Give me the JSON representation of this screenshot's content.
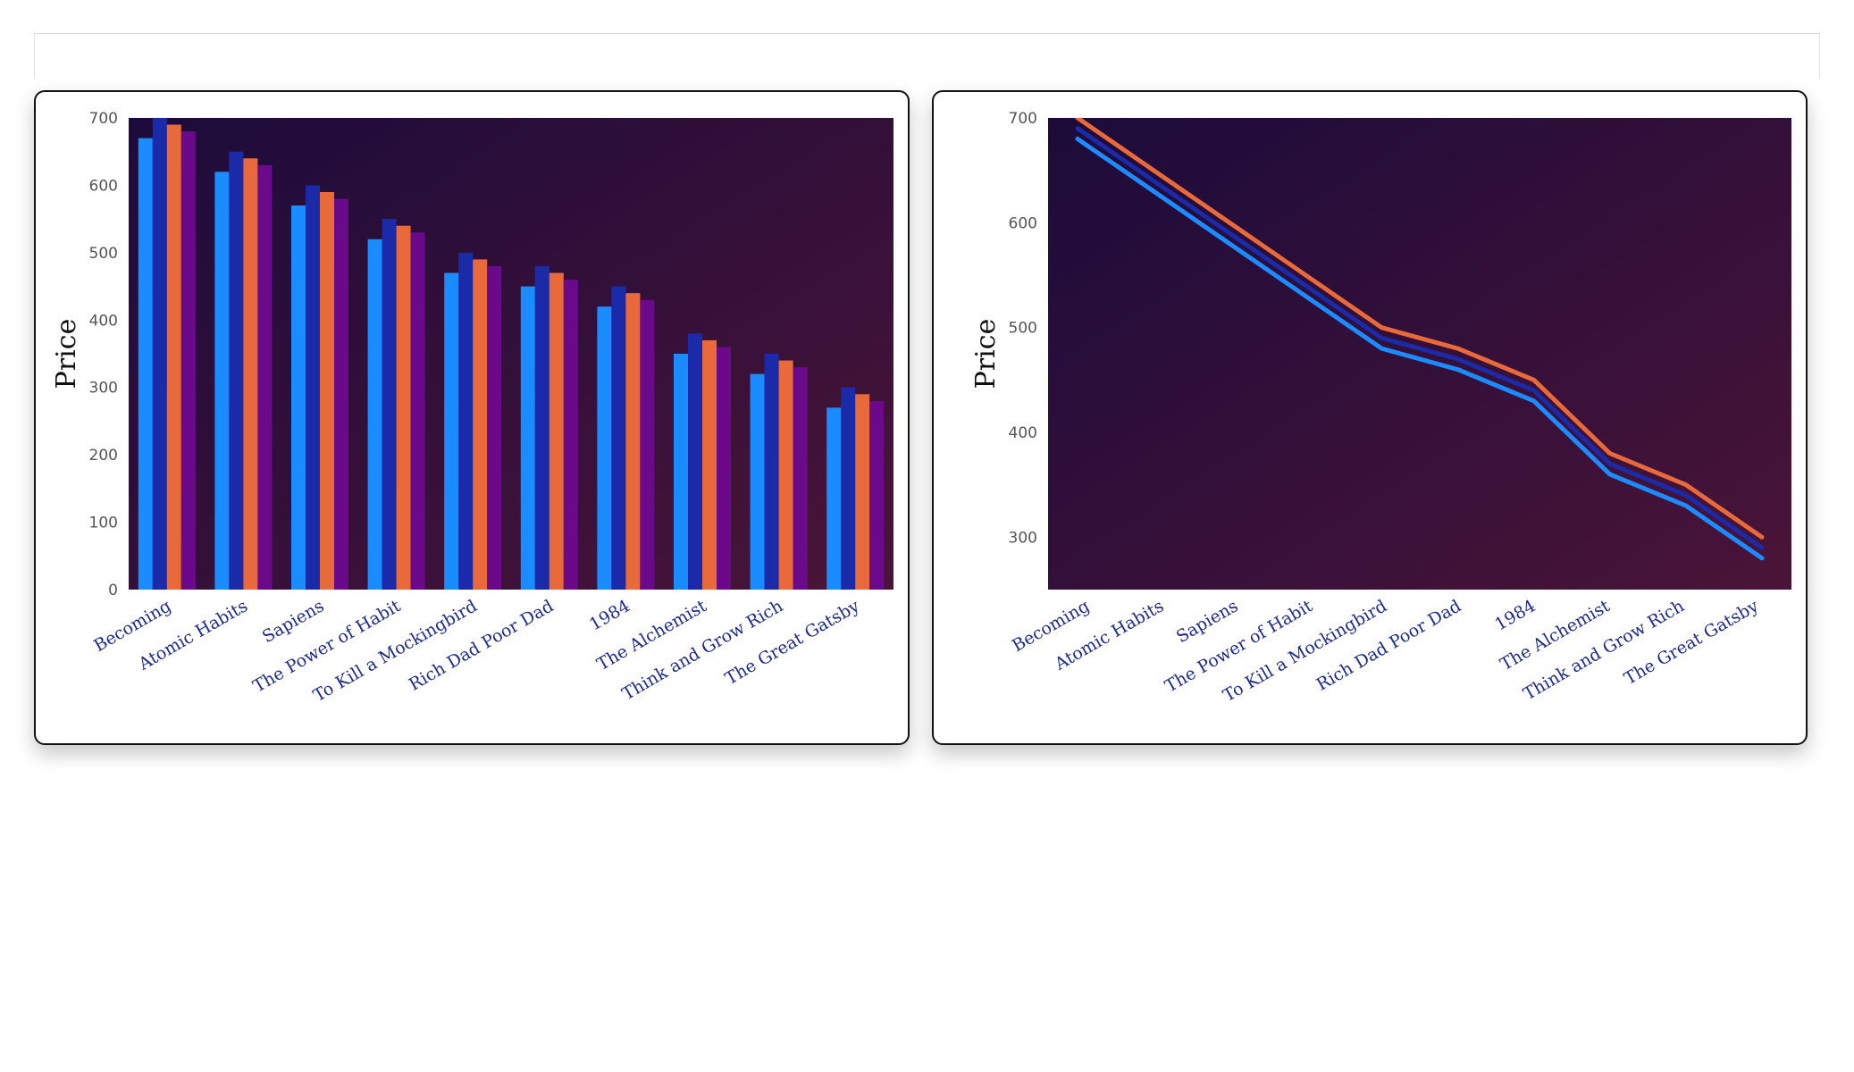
{
  "chart_data": [
    {
      "type": "bar",
      "ylabel": "Price",
      "xlabel": "",
      "ylim": [
        0,
        700
      ],
      "yticks": [
        0,
        100,
        200,
        300,
        400,
        500,
        600,
        700
      ],
      "categories": [
        "Becoming",
        "Atomic Habits",
        "Sapiens",
        "The Power of Habit",
        "To Kill a Mockingbird",
        "Rich Dad Poor Dad",
        "1984",
        "The Alchemist",
        "Think and Grow Rich",
        "The Great Gatsby"
      ],
      "series": [
        {
          "values": [
            670,
            620,
            570,
            520,
            470,
            450,
            420,
            350,
            320,
            270
          ],
          "color": "#1a8cff"
        },
        {
          "values": [
            700,
            650,
            600,
            550,
            500,
            480,
            450,
            380,
            350,
            300
          ],
          "color": "#1a2aa8"
        },
        {
          "values": [
            690,
            640,
            590,
            540,
            490,
            470,
            440,
            370,
            340,
            290
          ],
          "color": "#e8693a"
        },
        {
          "values": [
            680,
            630,
            580,
            530,
            480,
            460,
            430,
            360,
            330,
            280
          ],
          "color": "#6a0a8a"
        }
      ],
      "grid": false,
      "background": [
        "#1c0b3a",
        "#4a1438"
      ]
    },
    {
      "type": "line",
      "ylabel": "Price",
      "xlabel": "",
      "ylim": [
        250,
        700
      ],
      "yticks": [
        300,
        400,
        500,
        600,
        700
      ],
      "categories": [
        "Becoming",
        "Atomic Habits",
        "Sapiens",
        "The Power of Habit",
        "To Kill a Mockingbird",
        "Rich Dad Poor Dad",
        "1984",
        "The Alchemist",
        "Think and Grow Rich",
        "The Great Gatsby"
      ],
      "series": [
        {
          "values": [
            680,
            630,
            580,
            530,
            480,
            460,
            430,
            360,
            330,
            280
          ],
          "color": "#6a0a8a"
        },
        {
          "values": [
            690,
            640,
            590,
            540,
            490,
            470,
            440,
            370,
            340,
            290
          ],
          "color": "#1a2aa8"
        },
        {
          "values": [
            700,
            650,
            600,
            550,
            500,
            480,
            450,
            380,
            350,
            300
          ],
          "color": "#e8693a"
        },
        {
          "values": [
            680,
            630,
            580,
            530,
            480,
            460,
            430,
            360,
            330,
            280
          ],
          "color": "#1a8cff"
        }
      ],
      "grid": false,
      "background": [
        "#1c0b3a",
        "#4a1438"
      ]
    }
  ]
}
